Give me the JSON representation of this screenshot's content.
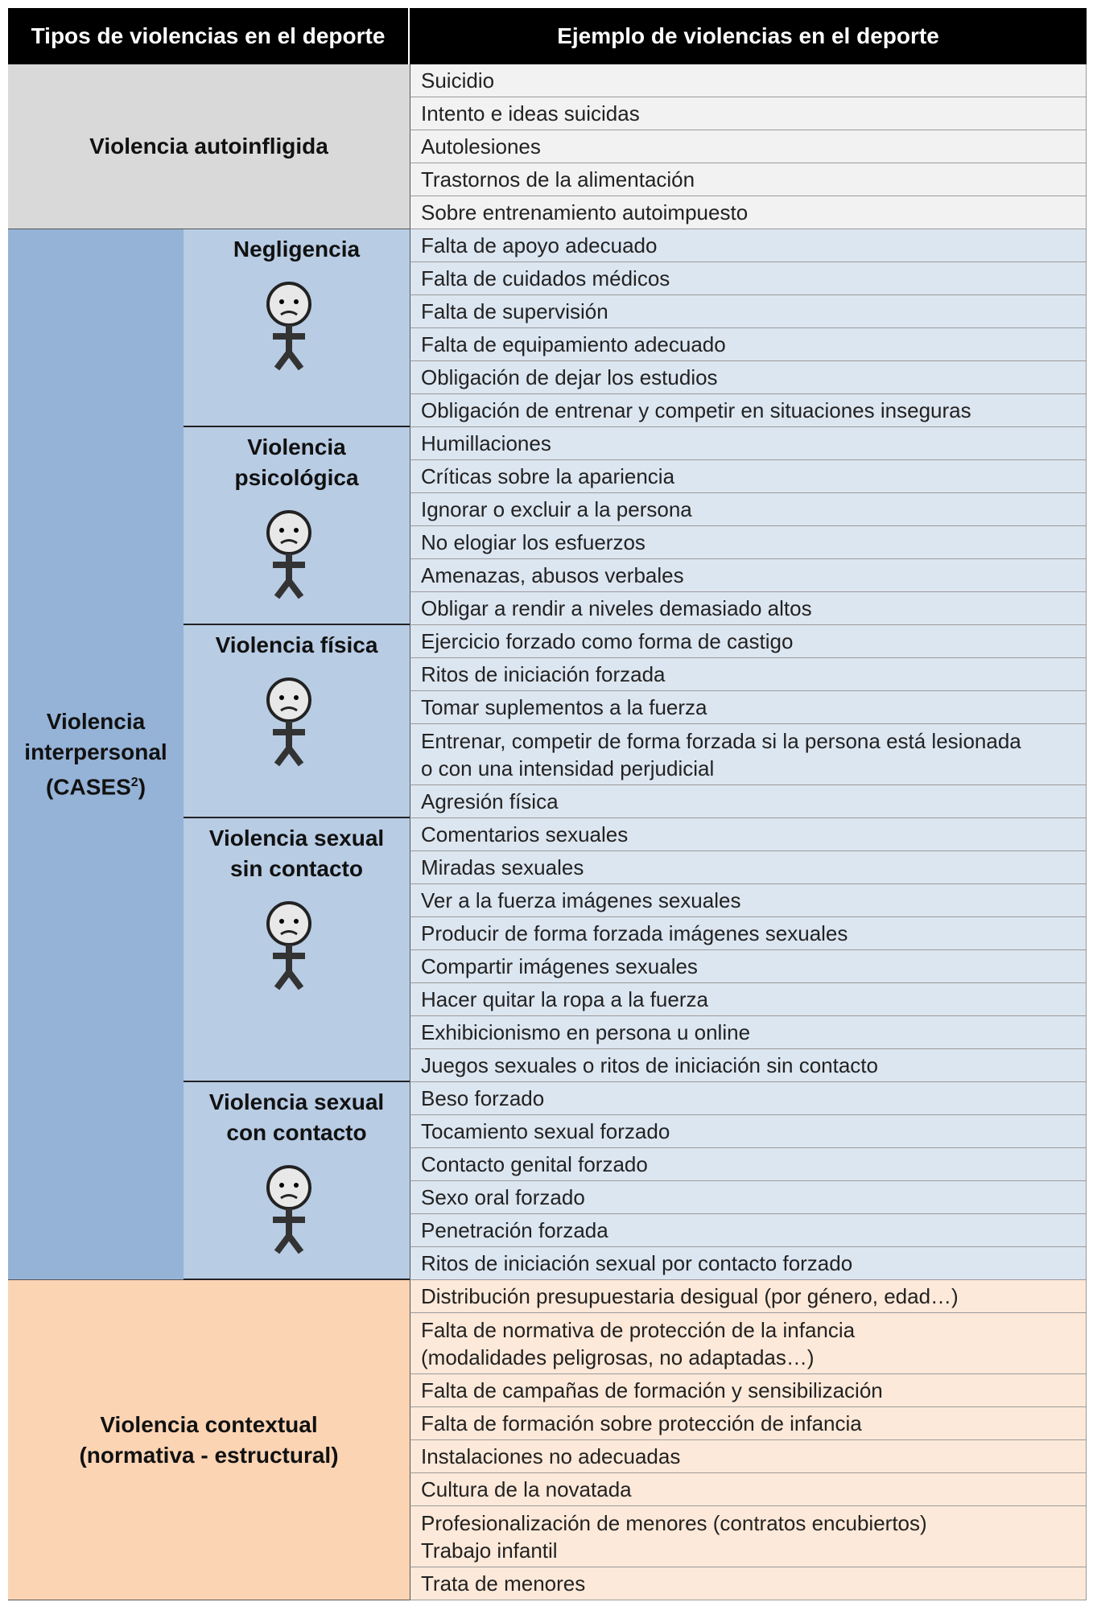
{
  "header": [
    "Tipos de violencias  en el deporte",
    "Ejemplo de violencias en el deporte"
  ],
  "groups": [
    {
      "label": [
        "Violencia autoinfligida"
      ],
      "examples": [
        "Suicidio",
        "Intento e ideas suicidas",
        "Autolesiones",
        "Trastornos de la alimentación",
        "Sobre entrenamiento autoimpuesto"
      ]
    },
    {
      "label": [
        "Violencia",
        "interpersonal",
        "(CASES"
      ],
      "footnote": "2",
      "label_tail": ")",
      "subgroups": [
        {
          "label": "Negligencia",
          "examples": [
            "Falta de apoyo adecuado",
            "Falta de cuidados médicos",
            "Falta de supervisión",
            "Falta de equipamiento adecuado",
            "Obligación de dejar los estudios",
            "Obligación de entrenar y competir en situaciones inseguras"
          ]
        },
        {
          "label": "Violencia psicológica",
          "examples": [
            "Humillaciones",
            "Críticas sobre la apariencia",
            "Ignorar o excluir a la persona",
            "No elogiar los esfuerzos",
            "Amenazas, abusos verbales",
            "Obligar a rendir a niveles demasiado altos"
          ]
        },
        {
          "label": "Violencia física",
          "examples": [
            "Ejercicio forzado como forma de castigo",
            "Ritos de iniciación forzada",
            "Tomar suplementos a la fuerza",
            [
              "Entrenar, competir de forma forzada si la persona está lesionada",
              "o con una intensidad perjudicial"
            ],
            "Agresión física"
          ]
        },
        {
          "label": "Violencia sexual sin contacto",
          "examples": [
            "Comentarios sexuales",
            "Miradas sexuales",
            "Ver a la fuerza imágenes sexuales",
            "Producir de forma forzada imágenes sexuales",
            "Compartir imágenes sexuales",
            "Hacer quitar la ropa a la fuerza",
            "Exhibicionismo en persona u online",
            "Juegos sexuales o ritos de iniciación sin contacto"
          ]
        },
        {
          "label": "Violencia sexual con contacto",
          "examples": [
            "Beso forzado",
            "Tocamiento sexual forzado",
            "Contacto genital forzado",
            "Sexo oral forzado",
            "Penetración forzada",
            "Ritos de iniciación sexual por contacto forzado"
          ]
        }
      ]
    },
    {
      "label": [
        "Violencia contextual",
        "(normativa - estructural)"
      ],
      "examples": [
        "Distribución presupuestaria desigual (por género, edad…)",
        [
          "Falta de normativa de protección de la infancia",
          "(modalidades peligrosas, no adaptadas…)"
        ],
        "Falta de campañas de formación y sensibilización",
        "Falta de formación sobre protección de infancia",
        "Instalaciones no adecuadas",
        "Cultura de la novatada",
        [
          "Profesionalización de menores (contratos encubiertos)",
          "Trabajo infantil"
        ],
        "Trata de menores"
      ]
    }
  ]
}
